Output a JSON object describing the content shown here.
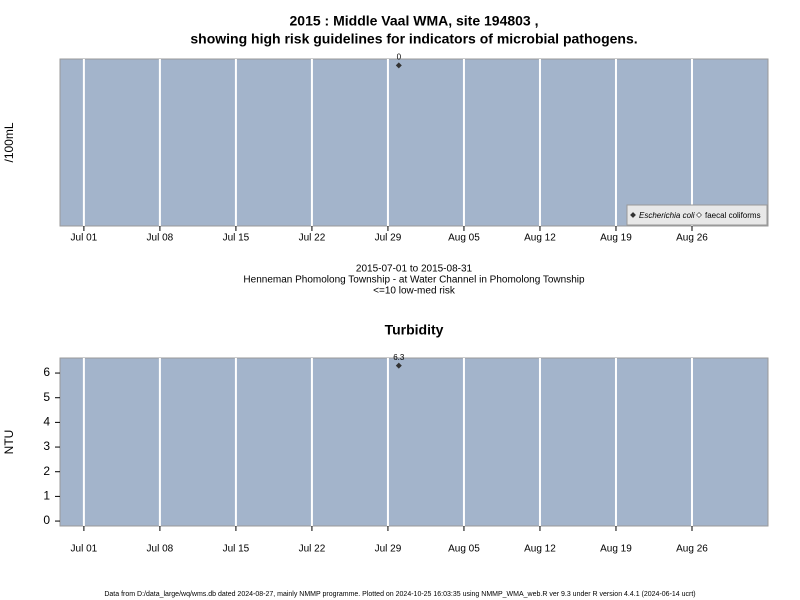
{
  "chart_data": [
    {
      "type": "scatter",
      "title": [
        "2015 : Middle Vaal WMA, site 194803 ,",
        "showing high risk guidelines for indicators of microbial pathogens."
      ],
      "ylabel": "/100mL",
      "x": [
        30
      ],
      "series": [
        {
          "name": "Escherichia coli",
          "color": "#333333",
          "values": [
            0
          ]
        },
        {
          "name": "faecal coliforms",
          "color": "#ffffff",
          "values": [
            null
          ]
        }
      ],
      "xlim": [
        -1.2,
        64
      ],
      "ylim": [
        -5,
        0.2
      ],
      "xticks": [
        {
          "value": 1,
          "label": "Jul 01"
        },
        {
          "value": 8,
          "label": "Jul 08"
        },
        {
          "value": 15,
          "label": "Jul 15"
        },
        {
          "value": 22,
          "label": "Jul 22"
        },
        {
          "value": 29,
          "label": "Jul 29"
        },
        {
          "value": 36,
          "label": "Aug 05"
        },
        {
          "value": 43,
          "label": "Aug 12"
        },
        {
          "value": 50,
          "label": "Aug 19"
        },
        {
          "value": 57,
          "label": "Aug 26"
        }
      ],
      "yticks": [],
      "grid": true,
      "legend": "bottom-right",
      "background": "#a3b4cb",
      "notes": [
        "2015-07-01 to 2015-08-31",
        "Henneman Phomolong Township - at Water Channel in Phomolong Township",
        "<=10 low-med risk"
      ]
    },
    {
      "type": "scatter",
      "title": [
        "Turbidity"
      ],
      "ylabel": "NTU",
      "x": [
        30
      ],
      "series": [
        {
          "name": "Turbidity",
          "color": "#333333",
          "values": [
            6.3
          ]
        }
      ],
      "xlim": [
        -1.2,
        64
      ],
      "ylim": [
        -0.2,
        6.61
      ],
      "xticks": [
        {
          "value": 1,
          "label": "Jul 01"
        },
        {
          "value": 8,
          "label": "Jul 08"
        },
        {
          "value": 15,
          "label": "Jul 15"
        },
        {
          "value": 22,
          "label": "Jul 22"
        },
        {
          "value": 29,
          "label": "Jul 29"
        },
        {
          "value": 36,
          "label": "Aug 05"
        },
        {
          "value": 43,
          "label": "Aug 12"
        },
        {
          "value": 50,
          "label": "Aug 19"
        },
        {
          "value": 57,
          "label": "Aug 26"
        }
      ],
      "yticks": [
        0,
        1,
        2,
        3,
        4,
        5,
        6
      ],
      "grid": true,
      "background": "#a3b4cb"
    }
  ],
  "footer": "Data from D:/data_large/wq/wms.db dated 2024-08-27, mainly NMMP programme. Plotted on 2024-10-25 16:03:35 using NMMP_WMA_web.R ver 9.3 under R version 4.4.1 (2024-06-14 ucrt)"
}
